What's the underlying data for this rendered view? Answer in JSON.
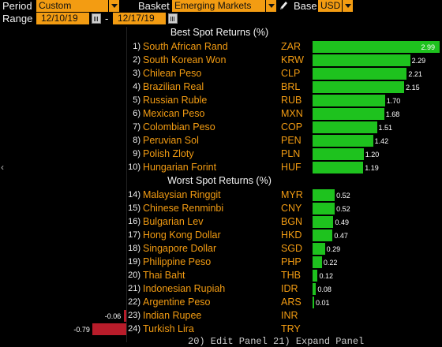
{
  "toolbar": {
    "period_label": "Period",
    "period_value": "Custom",
    "basket_label": "Basket",
    "basket_value": "Emerging Markets",
    "base_label": "Base",
    "base_value": "USD",
    "range_label": "Range",
    "range_start": "12/10/19",
    "range_sep": "-",
    "range_end": "12/17/19"
  },
  "best_title": "Best Spot Returns (%)",
  "worst_title": "Worst Spot Returns (%)",
  "colors": {
    "accent": "#f39c12",
    "positive": "#1ec21e",
    "negative": "#b81c2a"
  },
  "rows": [
    {
      "rank": "1)",
      "name": "South African Rand",
      "code": "ZAR",
      "value": 2.99,
      "label": "2.99"
    },
    {
      "rank": "2)",
      "name": "South Korean Won",
      "code": "KRW",
      "value": 2.29,
      "label": "2.29"
    },
    {
      "rank": "3)",
      "name": "Chilean Peso",
      "code": "CLP",
      "value": 2.21,
      "label": "2.21"
    },
    {
      "rank": "4)",
      "name": "Brazilian Real",
      "code": "BRL",
      "value": 2.15,
      "label": "2.15"
    },
    {
      "rank": "5)",
      "name": "Russian Ruble",
      "code": "RUB",
      "value": 1.7,
      "label": "1.70"
    },
    {
      "rank": "6)",
      "name": "Mexican Peso",
      "code": "MXN",
      "value": 1.68,
      "label": "1.68"
    },
    {
      "rank": "7)",
      "name": "Colombian Peso",
      "code": "COP",
      "value": 1.51,
      "label": "1.51"
    },
    {
      "rank": "8)",
      "name": "Peruvian Sol",
      "code": "PEN",
      "value": 1.42,
      "label": "1.42"
    },
    {
      "rank": "9)",
      "name": "Polish Zloty",
      "code": "PLN",
      "value": 1.2,
      "label": "1.20"
    },
    {
      "rank": "10)",
      "name": "Hungarian Forint",
      "code": "HUF",
      "value": 1.19,
      "label": "1.19"
    },
    {
      "rank": "14)",
      "name": "Malaysian Ringgit",
      "code": "MYR",
      "value": 0.52,
      "label": "0.52"
    },
    {
      "rank": "15)",
      "name": "Chinese Renminbi",
      "code": "CNY",
      "value": 0.52,
      "label": "0.52"
    },
    {
      "rank": "16)",
      "name": "Bulgarian Lev",
      "code": "BGN",
      "value": 0.49,
      "label": "0.49"
    },
    {
      "rank": "17)",
      "name": "Hong Kong Dollar",
      "code": "HKD",
      "value": 0.47,
      "label": "0.47"
    },
    {
      "rank": "18)",
      "name": "Singapore Dollar",
      "code": "SGD",
      "value": 0.29,
      "label": "0.29"
    },
    {
      "rank": "19)",
      "name": "Philippine Peso",
      "code": "PHP",
      "value": 0.22,
      "label": "0.22"
    },
    {
      "rank": "20)",
      "name": "Thai Baht",
      "code": "THB",
      "value": 0.12,
      "label": "0.12"
    },
    {
      "rank": "21)",
      "name": "Indonesian Rupiah",
      "code": "IDR",
      "value": 0.08,
      "label": "0.08"
    },
    {
      "rank": "22)",
      "name": "Argentine Peso",
      "code": "ARS",
      "value": 0.01,
      "label": "0.01"
    },
    {
      "rank": "23)",
      "name": "Indian Rupee",
      "code": "INR",
      "value": -0.06,
      "label": "-0.06"
    },
    {
      "rank": "24)",
      "name": "Turkish Lira",
      "code": "TRY",
      "value": -0.79,
      "label": "-0.79"
    }
  ],
  "bottom_hint": "20) Edit Panel  21) Expand Panel"
}
